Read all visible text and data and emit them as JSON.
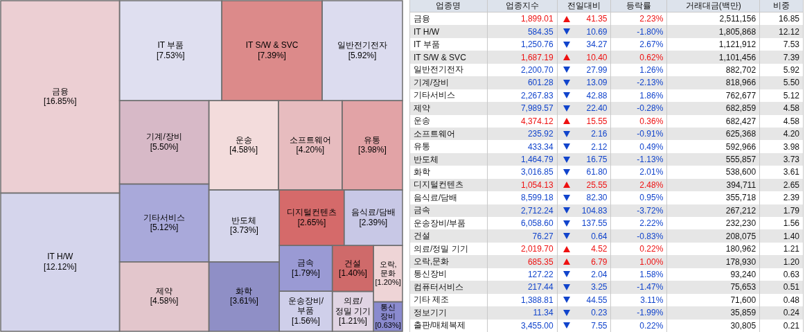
{
  "chart_data": [
    {
      "type": "other",
      "categories": [
        "금융",
        "IT H/W",
        "IT 부품",
        "IT S/W & SVC",
        "일반전기전자",
        "기계/장비",
        "기타서비스",
        "제약",
        "운송",
        "소프트웨어",
        "유통",
        "반도체",
        "화학",
        "디지털컨텐츠",
        "음식료/담배",
        "금속",
        "운송장비/부품",
        "건설",
        "의료/정밀 기기",
        "오락,문화",
        "통신장비"
      ],
      "values": [
        16.85,
        12.12,
        7.53,
        7.39,
        5.92,
        5.5,
        5.12,
        4.58,
        4.58,
        4.2,
        3.98,
        3.73,
        3.61,
        2.65,
        2.39,
        1.79,
        1.56,
        1.4,
        1.21,
        1.2,
        0.63
      ],
      "value_labels": [
        "[16.85%]",
        "[12.12%]",
        "[7.53%]",
        "[7.39%]",
        "[5.92%]",
        "[5.50%]",
        "[5.12%]",
        "[4.58%]",
        "[4.58%]",
        "[4.20%]",
        "[3.98%]",
        "[3.73%]",
        "[3.61%]",
        "[2.65%]",
        "[2.39%]",
        "[1.79%]",
        "[1.56%]",
        "[1.40%]",
        "[1.21%]",
        "[1.20%]",
        "[0.63%]"
      ],
      "colors": [
        "#eccfd3",
        "#d5d5ec",
        "#dfdff0",
        "#dc8a8a",
        "#dcdcef",
        "#d7b9c7",
        "#a9a9da",
        "#e3c6cc",
        "#f3dcdc",
        "#e7bcbf",
        "#e2a3a6",
        "#d6d6ec",
        "#8f8fc6",
        "#d56a6a",
        "#c8c8e6",
        "#9a9ad4",
        "#cfcfea",
        "#cf6a6a",
        "#e0d4e3",
        "#eed4d6",
        "#8a8ace"
      ]
    },
    {
      "type": "other",
      "ylabel": "업종명",
      "categories": [
        "금융",
        "IT H/W",
        "IT 부품",
        "IT S/W & SVC",
        "일반전기전자",
        "기계/장비",
        "기타서비스",
        "제약",
        "운송",
        "소프트웨어",
        "유통",
        "반도체",
        "화학",
        "디지털컨텐츠",
        "음식료/담배",
        "금속",
        "운송장비/부품",
        "건설",
        "의료/정밀 기기",
        "오락,문화",
        "통신장비",
        "컴퓨터서비스",
        "기타 제조",
        "정보기기",
        "출판/매체복제"
      ],
      "series": [
        {
          "name": "업종지수",
          "values": [
            1899.01,
            584.35,
            1250.76,
            1687.19,
            2200.7,
            601.28,
            2267.83,
            7989.57,
            4374.12,
            235.92,
            433.34,
            1464.79,
            3016.85,
            1054.13,
            8599.18,
            2712.24,
            6058.6,
            76.27,
            2019.7,
            685.35,
            127.22,
            217.44,
            1388.81,
            11.34,
            3455.0
          ],
          "value_labels": [
            "1,899.01",
            "584.35",
            "1,250.76",
            "1,687.19",
            "2,200.70",
            "601.28",
            "2,267.83",
            "7,989.57",
            "4,374.12",
            "235.92",
            "433.34",
            "1,464.79",
            "3,016.85",
            "1,054.13",
            "8,599.18",
            "2,712.24",
            "6,058.60",
            "76.27",
            "2,019.70",
            "685.35",
            "127.22",
            "217.44",
            "1,388.81",
            "11.34",
            "3,455.00"
          ],
          "colors": [
            "#ee1111",
            "#1144cc",
            "#1144cc",
            "#ee1111",
            "#1144cc",
            "#1144cc",
            "#1144cc",
            "#1144cc",
            "#ee1111",
            "#1144cc",
            "#1144cc",
            "#1144cc",
            "#1144cc",
            "#ee1111",
            "#1144cc",
            "#1144cc",
            "#1144cc",
            "#1144cc",
            "#ee1111",
            "#ee1111",
            "#1144cc",
            "#1144cc",
            "#1144cc",
            "#1144cc",
            "#1144cc"
          ]
        },
        {
          "name": "전일대비",
          "marker": "triangle",
          "values": [
            41.35,
            10.69,
            34.27,
            10.4,
            27.99,
            13.09,
            42.88,
            22.4,
            15.55,
            2.16,
            2.12,
            16.75,
            61.8,
            25.55,
            82.3,
            104.83,
            137.55,
            0.64,
            4.52,
            6.79,
            2.04,
            3.25,
            44.55,
            0.23,
            7.55
          ],
          "value_labels": [
            "41.35",
            "10.69",
            "34.27",
            "10.40",
            "27.99",
            "13.09",
            "42.88",
            "22.40",
            "15.55",
            "2.16",
            "2.12",
            "16.75",
            "61.80",
            "25.55",
            "82.30",
            "104.83",
            "137.55",
            "0.64",
            "4.52",
            "6.79",
            "2.04",
            "3.25",
            "44.55",
            "0.23",
            "7.55"
          ],
          "colors": [
            "#ee1111",
            "#1144cc",
            "#1144cc",
            "#ee1111",
            "#1144cc",
            "#1144cc",
            "#1144cc",
            "#1144cc",
            "#ee1111",
            "#1144cc",
            "#1144cc",
            "#1144cc",
            "#1144cc",
            "#ee1111",
            "#1144cc",
            "#1144cc",
            "#1144cc",
            "#1144cc",
            "#ee1111",
            "#ee1111",
            "#1144cc",
            "#1144cc",
            "#1144cc",
            "#1144cc",
            "#1144cc"
          ]
        },
        {
          "name": "등락률",
          "values": [
            2.23,
            -1.8,
            2.67,
            0.62,
            1.26,
            -2.13,
            1.86,
            -0.28,
            0.36,
            -0.91,
            0.49,
            -1.13,
            2.01,
            2.48,
            0.95,
            -3.72,
            2.22,
            -0.83,
            0.22,
            1.0,
            1.58,
            -1.47,
            3.11,
            -1.99,
            0.22
          ],
          "value_labels": [
            "2.23%",
            "-1.80%",
            "2.67%",
            "0.62%",
            "1.26%",
            "-2.13%",
            "1.86%",
            "-0.28%",
            "0.36%",
            "-0.91%",
            "0.49%",
            "-1.13%",
            "2.01%",
            "2.48%",
            "0.95%",
            "-3.72%",
            "2.22%",
            "-0.83%",
            "0.22%",
            "1.00%",
            "1.58%",
            "-1.47%",
            "3.11%",
            "-1.99%",
            "0.22%"
          ],
          "colors": [
            "#ee1111",
            "#1144cc",
            "#1144cc",
            "#ee1111",
            "#1144cc",
            "#1144cc",
            "#1144cc",
            "#1144cc",
            "#ee1111",
            "#1144cc",
            "#1144cc",
            "#1144cc",
            "#1144cc",
            "#ee1111",
            "#1144cc",
            "#1144cc",
            "#1144cc",
            "#1144cc",
            "#ee1111",
            "#ee1111",
            "#1144cc",
            "#1144cc",
            "#1144cc",
            "#1144cc",
            "#1144cc"
          ]
        },
        {
          "name": "거래대금(백만)",
          "color": "#111111",
          "values": [
            2511156,
            1805868,
            1121912,
            1101456,
            882702,
            818966,
            762677,
            682859,
            682427,
            625368,
            592966,
            555857,
            538600,
            394711,
            355718,
            267212,
            232230,
            208075,
            180962,
            178930,
            93240,
            75653,
            71600,
            35859,
            30805
          ],
          "value_labels": [
            "2,511,156",
            "1,805,868",
            "1,121,912",
            "1,101,456",
            "882,702",
            "818,966",
            "762,677",
            "682,859",
            "682,427",
            "625,368",
            "592,966",
            "555,857",
            "538,600",
            "394,711",
            "355,718",
            "267,212",
            "232,230",
            "208,075",
            "180,962",
            "178,930",
            "93,240",
            "75,653",
            "71,600",
            "35,859",
            "30,805"
          ]
        },
        {
          "name": "비중",
          "color": "#111111",
          "values": [
            16.85,
            12.12,
            7.53,
            7.39,
            5.92,
            5.5,
            5.12,
            4.58,
            4.58,
            4.2,
            3.98,
            3.73,
            3.61,
            2.65,
            2.39,
            1.79,
            1.56,
            1.4,
            1.21,
            1.2,
            0.63,
            0.51,
            0.48,
            0.24,
            0.21
          ],
          "value_labels": [
            "16.85",
            "12.12",
            "7.53",
            "7.39",
            "5.92",
            "5.50",
            "5.12",
            "4.58",
            "4.58",
            "4.20",
            "3.98",
            "3.73",
            "3.61",
            "2.65",
            "2.39",
            "1.79",
            "1.56",
            "1.40",
            "1.21",
            "1.20",
            "0.63",
            "0.51",
            "0.48",
            "0.24",
            "0.21"
          ]
        }
      ]
    }
  ]
}
